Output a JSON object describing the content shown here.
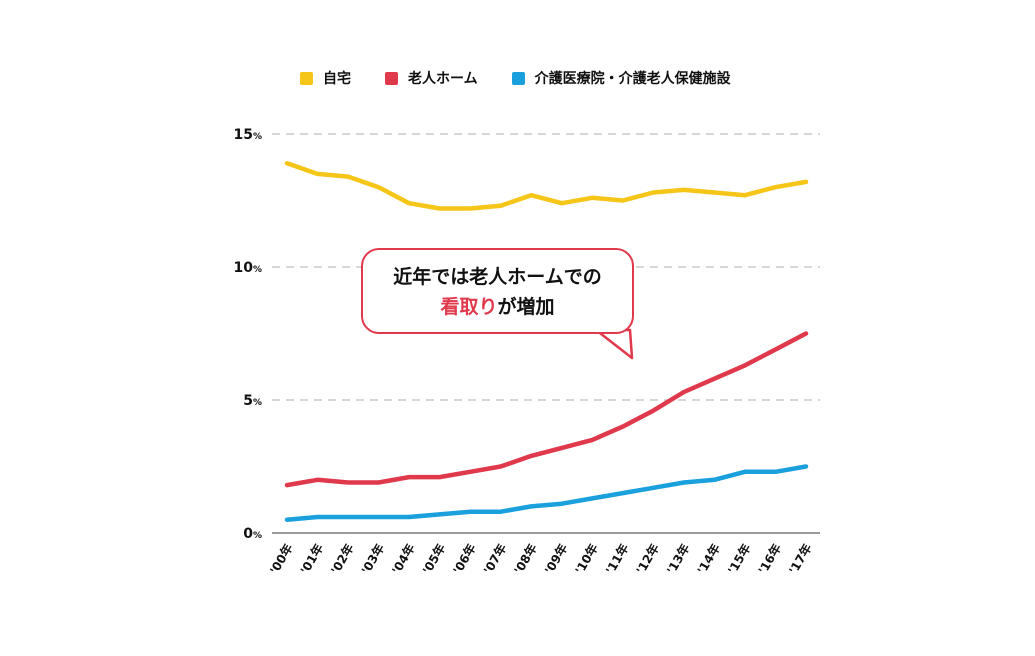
{
  "legend": {
    "items": [
      {
        "label": "自宅",
        "color": "#f5c518"
      },
      {
        "label": "老人ホーム",
        "color": "#e0394c"
      },
      {
        "label": "介護医療院・介護老人保健施設",
        "color": "#1aa0dc"
      }
    ]
  },
  "callout": {
    "line1": "近年では老人ホームでの",
    "highlight": "看取り",
    "line2_rest": "が増加"
  },
  "chart_data": {
    "type": "line",
    "categories": [
      "'00年",
      "'01年",
      "'02年",
      "'03年",
      "'04年",
      "'05年",
      "'06年",
      "'07年",
      "'08年",
      "'09年",
      "'10年",
      "'11年",
      "'12年",
      "'13年",
      "'14年",
      "'15年",
      "'16年",
      "'17年"
    ],
    "y_ticks": [
      {
        "value": 0,
        "label": "0",
        "unit": "%"
      },
      {
        "value": 5,
        "label": "5",
        "unit": "%"
      },
      {
        "value": 10,
        "label": "10",
        "unit": "%"
      },
      {
        "value": 15,
        "label": "15",
        "unit": "%"
      }
    ],
    "ylim": [
      0,
      15
    ],
    "grid": true,
    "series": [
      {
        "name": "自宅",
        "color": "#f5c518",
        "values": [
          13.9,
          13.5,
          13.4,
          13.0,
          12.4,
          12.2,
          12.2,
          12.3,
          12.7,
          12.4,
          12.6,
          12.5,
          12.8,
          12.9,
          12.8,
          12.7,
          13.0,
          13.2
        ]
      },
      {
        "name": "老人ホーム",
        "color": "#e0394c",
        "values": [
          1.8,
          2.0,
          1.9,
          1.9,
          2.1,
          2.1,
          2.3,
          2.5,
          2.9,
          3.2,
          3.5,
          4.0,
          4.6,
          5.3,
          5.8,
          6.3,
          6.9,
          7.5
        ]
      },
      {
        "name": "介護医療院・介護老人保健施設",
        "color": "#1aa0dc",
        "values": [
          0.5,
          0.6,
          0.6,
          0.6,
          0.6,
          0.7,
          0.8,
          0.8,
          1.0,
          1.1,
          1.3,
          1.5,
          1.7,
          1.9,
          2.0,
          2.3,
          2.3,
          2.5
        ]
      }
    ]
  }
}
